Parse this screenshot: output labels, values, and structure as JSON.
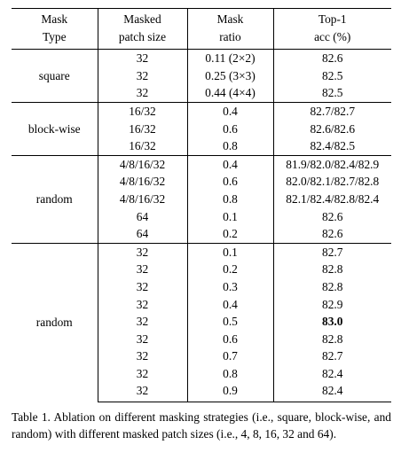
{
  "table": {
    "headers": [
      {
        "line1": "Mask",
        "line2": "Type"
      },
      {
        "line1": "Masked",
        "line2": "patch size"
      },
      {
        "line1": "Mask",
        "line2": "ratio"
      },
      {
        "line1": "Top-1",
        "line2": "acc (%)"
      }
    ],
    "groups": [
      {
        "type": "square",
        "rows": [
          {
            "patch": "32",
            "ratio": "0.11 (2×2)",
            "acc": "82.6"
          },
          {
            "patch": "32",
            "ratio": "0.25 (3×3)",
            "acc": "82.5"
          },
          {
            "patch": "32",
            "ratio": "0.44 (4×4)",
            "acc": "82.5"
          }
        ]
      },
      {
        "type": "block-wise",
        "rows": [
          {
            "patch": "16/32",
            "ratio": "0.4",
            "acc": "82.7/82.7"
          },
          {
            "patch": "16/32",
            "ratio": "0.6",
            "acc": "82.6/82.6"
          },
          {
            "patch": "16/32",
            "ratio": "0.8",
            "acc": "82.4/82.5"
          }
        ]
      },
      {
        "type": "random",
        "rows": [
          {
            "patch": "4/8/16/32",
            "ratio": "0.4",
            "acc": "81.9/82.0/82.4/82.9"
          },
          {
            "patch": "4/8/16/32",
            "ratio": "0.6",
            "acc": "82.0/82.1/82.7/82.8"
          },
          {
            "patch": "4/8/16/32",
            "ratio": "0.8",
            "acc": "82.1/82.4/82.8/82.4"
          },
          {
            "patch": "64",
            "ratio": "0.1",
            "acc": "82.6"
          },
          {
            "patch": "64",
            "ratio": "0.2",
            "acc": "82.6"
          }
        ]
      },
      {
        "type": "random",
        "rows": [
          {
            "patch": "32",
            "ratio": "0.1",
            "acc": "82.7"
          },
          {
            "patch": "32",
            "ratio": "0.2",
            "acc": "82.8"
          },
          {
            "patch": "32",
            "ratio": "0.3",
            "acc": "82.8"
          },
          {
            "patch": "32",
            "ratio": "0.4",
            "acc": "82.9"
          },
          {
            "patch": "32",
            "ratio": "0.5",
            "acc": "83.0",
            "bold": true
          },
          {
            "patch": "32",
            "ratio": "0.6",
            "acc": "82.8"
          },
          {
            "patch": "32",
            "ratio": "0.7",
            "acc": "82.7"
          },
          {
            "patch": "32",
            "ratio": "0.8",
            "acc": "82.4"
          },
          {
            "patch": "32",
            "ratio": "0.9",
            "acc": "82.4"
          }
        ]
      }
    ]
  },
  "caption": "Table 1.  Ablation on different masking strategies (i.e., square, block-wise, and random) with different masked patch sizes (i.e., 4, 8, 16, 32 and 64)."
}
